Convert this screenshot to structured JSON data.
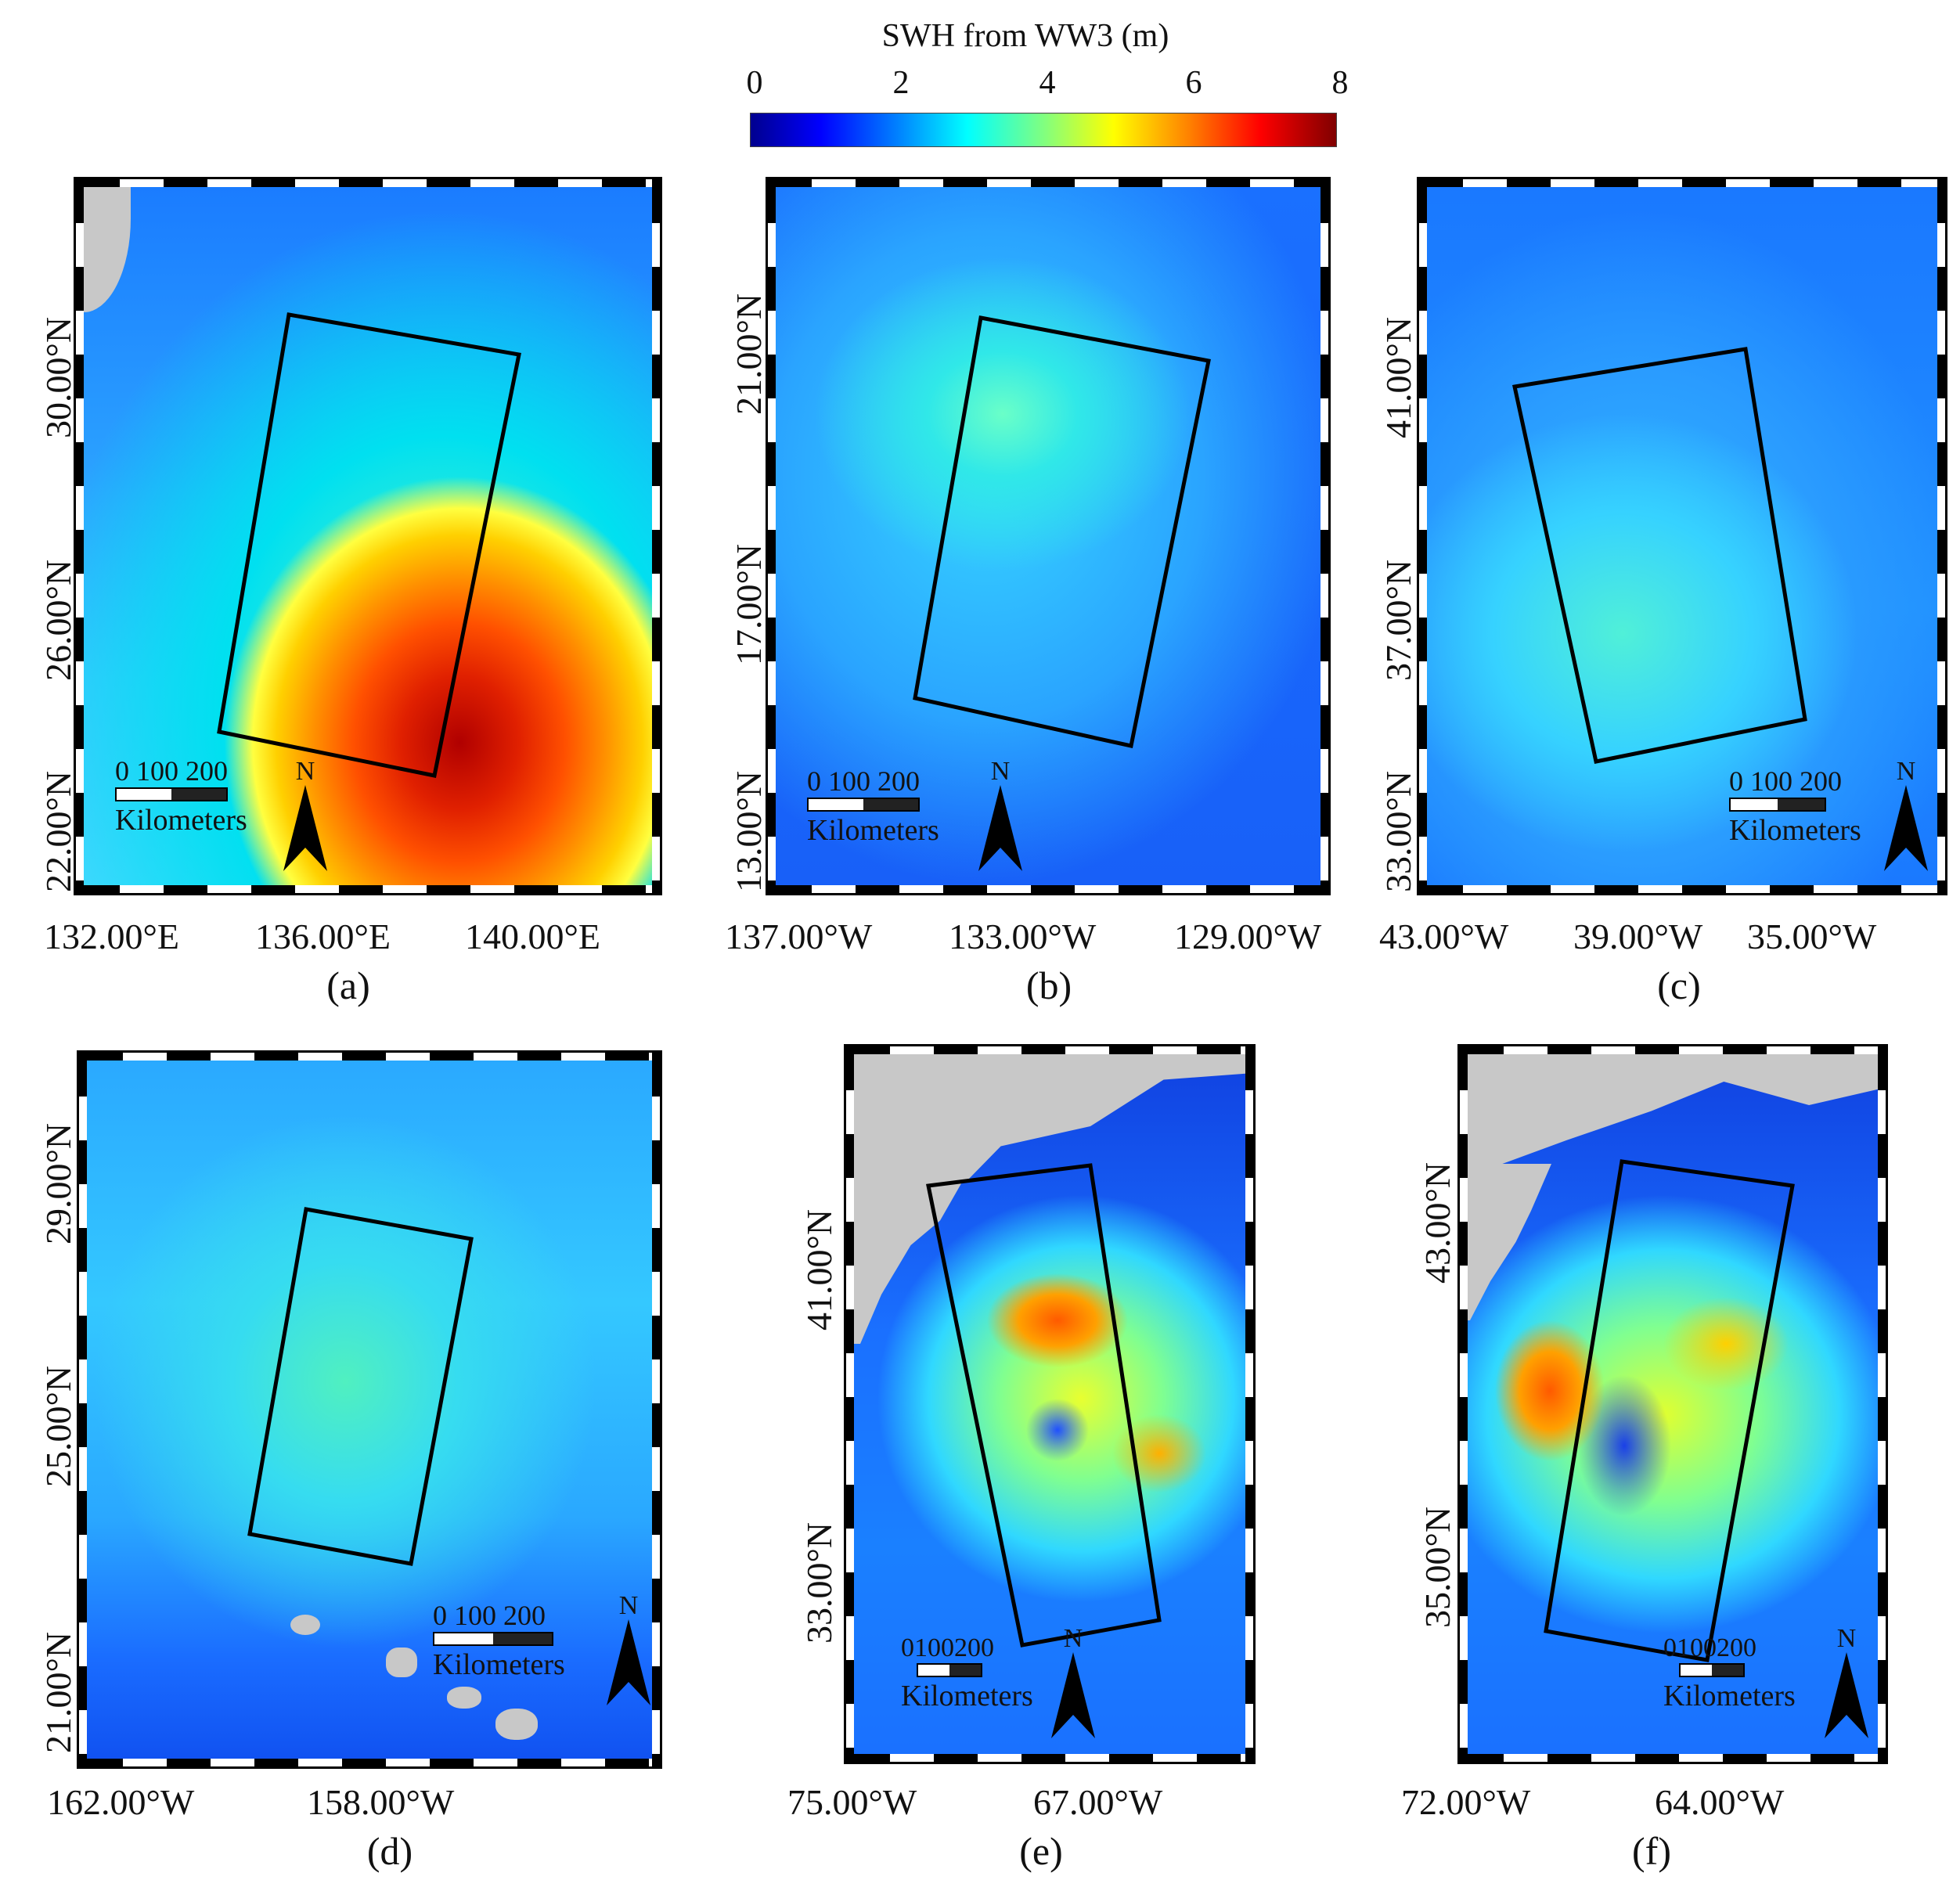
{
  "colorbar": {
    "title": "SWH from WW3 (m)",
    "ticks": [
      "0",
      "2",
      "4",
      "6",
      "8"
    ],
    "min": 0,
    "max": 8,
    "colormap": [
      "#00008f",
      "#0000ff",
      "#0080ff",
      "#00ffff",
      "#80ff80",
      "#ffff00",
      "#ff8000",
      "#ff0000",
      "#800000"
    ]
  },
  "scale": {
    "labels": [
      "0",
      "100",
      "200"
    ],
    "compact": "0100200",
    "unit": "Kilometers",
    "north": "N"
  },
  "panels": [
    {
      "id": "a",
      "label": "(a)",
      "lat_labels": [
        "30.00°N",
        "26.00°N",
        "22.00°N"
      ],
      "lon_labels": [
        "132.00°E",
        "136.00°E",
        "140.00°E"
      ],
      "max_swh": "high (~7)"
    },
    {
      "id": "b",
      "label": "(b)",
      "lat_labels": [
        "21.00°N",
        "17.00°N",
        "13.00°N"
      ],
      "lon_labels": [
        "137.00°W",
        "133.00°W",
        "129.00°W"
      ]
    },
    {
      "id": "c",
      "label": "(c)",
      "lat_labels": [
        "41.00°N",
        "37.00°N",
        "33.00°N"
      ],
      "lon_labels": [
        "43.00°W",
        "39.00°W",
        "35.00°W"
      ]
    },
    {
      "id": "d",
      "label": "(d)",
      "lat_labels": [
        "29.00°N",
        "25.00°N",
        "21.00°N"
      ],
      "lon_labels": [
        "162.00°W",
        "158.00°W"
      ]
    },
    {
      "id": "e",
      "label": "(e)",
      "lat_labels": [
        "41.00°N",
        "33.00°N"
      ],
      "lon_labels": [
        "75.00°W",
        "67.00°W"
      ]
    },
    {
      "id": "f",
      "label": "(f)",
      "lat_labels": [
        "43.00°N",
        "35.00°N"
      ],
      "lon_labels": [
        "72.00°W",
        "64.00°W"
      ]
    }
  ]
}
